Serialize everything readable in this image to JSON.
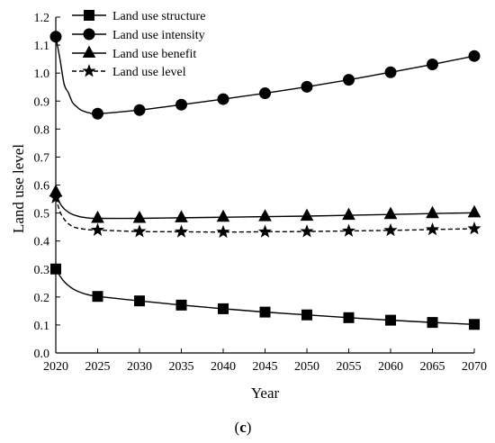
{
  "chart_data": {
    "type": "line",
    "title": "",
    "xlabel": "Year",
    "ylabel": "Land use level",
    "panel_label": {
      "open": "(",
      "letter": "c",
      "close": ")"
    },
    "xlim": [
      2020,
      2070
    ],
    "ylim": [
      0,
      1.2
    ],
    "xticks": [
      2020,
      2025,
      2030,
      2035,
      2040,
      2045,
      2050,
      2055,
      2060,
      2065,
      2070
    ],
    "yticks": [
      0.0,
      0.1,
      0.2,
      0.3,
      0.4,
      0.5,
      0.6,
      0.7,
      0.8,
      0.9,
      1.0,
      1.1,
      1.2
    ],
    "ytick_labels": [
      "0.0",
      "0.1",
      "0.2",
      "0.3",
      "0.4",
      "0.5",
      "0.6",
      "0.7",
      "0.8",
      "0.9",
      "1.0",
      "1.1",
      "1.2"
    ],
    "grid": false,
    "legend_position": "top-left",
    "series": [
      {
        "name": "Land use structure",
        "marker": "square",
        "dash": "solid",
        "color": "#000000",
        "x": [
          2020,
          2025,
          2030,
          2035,
          2040,
          2045,
          2050,
          2055,
          2060,
          2065,
          2070
        ],
        "y": [
          0.3,
          0.202,
          0.186,
          0.171,
          0.158,
          0.146,
          0.136,
          0.126,
          0.117,
          0.109,
          0.102
        ],
        "curve_x": [
          2020,
          2020.5,
          2021,
          2021.5,
          2022,
          2022.5,
          2023,
          2023.5,
          2024,
          2025,
          2030,
          2035,
          2040,
          2045,
          2050,
          2055,
          2060,
          2065,
          2070
        ],
        "curve_y": [
          0.3,
          0.275,
          0.255,
          0.241,
          0.23,
          0.222,
          0.216,
          0.211,
          0.207,
          0.202,
          0.186,
          0.171,
          0.158,
          0.146,
          0.136,
          0.126,
          0.117,
          0.109,
          0.102
        ]
      },
      {
        "name": "Land use intensity",
        "marker": "circle",
        "dash": "solid",
        "color": "#000000",
        "x": [
          2020,
          2025,
          2030,
          2035,
          2040,
          2045,
          2050,
          2055,
          2060,
          2065,
          2070
        ],
        "y": [
          1.13,
          0.855,
          0.868,
          0.887,
          0.907,
          0.928,
          0.951,
          0.976,
          1.003,
          1.031,
          1.061
        ],
        "curve_x": [
          2020,
          2020.5,
          2021,
          2021.5,
          2022,
          2022.5,
          2023,
          2023.5,
          2024,
          2025,
          2030,
          2035,
          2040,
          2045,
          2050,
          2055,
          2060,
          2065,
          2070
        ],
        "curve_y": [
          1.13,
          1.05,
          0.96,
          0.93,
          0.895,
          0.88,
          0.868,
          0.862,
          0.858,
          0.855,
          0.868,
          0.887,
          0.907,
          0.928,
          0.951,
          0.976,
          1.003,
          1.031,
          1.061
        ]
      },
      {
        "name": "Land use benefit",
        "marker": "triangle",
        "dash": "solid",
        "color": "#000000",
        "x": [
          2020,
          2025,
          2030,
          2035,
          2040,
          2045,
          2050,
          2055,
          2060,
          2065,
          2070
        ],
        "y": [
          0.575,
          0.481,
          0.481,
          0.483,
          0.485,
          0.487,
          0.489,
          0.492,
          0.495,
          0.498,
          0.501
        ],
        "curve_x": [
          2020,
          2020.5,
          2021,
          2021.5,
          2022,
          2022.5,
          2023,
          2023.5,
          2024,
          2025,
          2030,
          2035,
          2040,
          2045,
          2050,
          2055,
          2060,
          2065,
          2070
        ],
        "curve_y": [
          0.575,
          0.535,
          0.515,
          0.503,
          0.495,
          0.49,
          0.486,
          0.484,
          0.482,
          0.481,
          0.481,
          0.483,
          0.485,
          0.487,
          0.489,
          0.492,
          0.495,
          0.498,
          0.501
        ]
      },
      {
        "name": "Land use level",
        "marker": "star",
        "dash": "dashed",
        "color": "#000000",
        "x": [
          2020,
          2025,
          2030,
          2035,
          2040,
          2045,
          2050,
          2055,
          2060,
          2065,
          2070
        ],
        "y": [
          0.555,
          0.439,
          0.434,
          0.433,
          0.432,
          0.433,
          0.434,
          0.436,
          0.438,
          0.441,
          0.444
        ],
        "curve_x": [
          2020,
          2020.5,
          2021,
          2021.5,
          2022,
          2022.5,
          2023,
          2023.5,
          2024,
          2025,
          2030,
          2035,
          2040,
          2045,
          2050,
          2055,
          2060,
          2065,
          2070
        ],
        "curve_y": [
          0.555,
          0.505,
          0.478,
          0.462,
          0.452,
          0.447,
          0.444,
          0.442,
          0.44,
          0.439,
          0.434,
          0.433,
          0.432,
          0.433,
          0.434,
          0.436,
          0.438,
          0.441,
          0.444
        ]
      }
    ]
  }
}
